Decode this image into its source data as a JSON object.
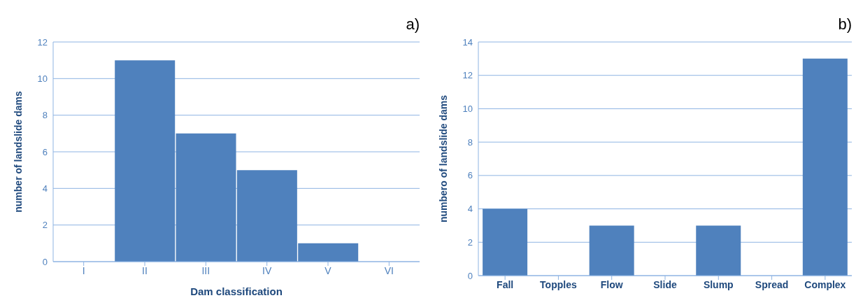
{
  "chart_data": [
    {
      "type": "bar",
      "title": "a)",
      "xlabel": "Dam classification",
      "ylabel": "number of landslide dams",
      "categories": [
        "I",
        "II",
        "III",
        "IV",
        "V",
        "VI"
      ],
      "values": [
        0,
        11,
        7,
        5,
        1,
        0
      ],
      "color": "#4f81bd",
      "ylim": [
        0,
        12
      ],
      "yticks": [
        0,
        2,
        4,
        6,
        8,
        10,
        12
      ],
      "grid": "y"
    },
    {
      "type": "bar",
      "title": "b)",
      "ylabel": "numbero of landslide dams",
      "categories": [
        "Fall",
        "Topples",
        "Flow",
        "Slide",
        "Slump",
        "Spread",
        "Complex"
      ],
      "values": [
        4,
        0,
        3,
        0,
        3,
        0,
        13
      ],
      "color": "#4f81bd",
      "ylim": [
        0,
        14
      ],
      "yticks": [
        0,
        2,
        4,
        6,
        8,
        10,
        12,
        14
      ],
      "grid": "y"
    }
  ]
}
